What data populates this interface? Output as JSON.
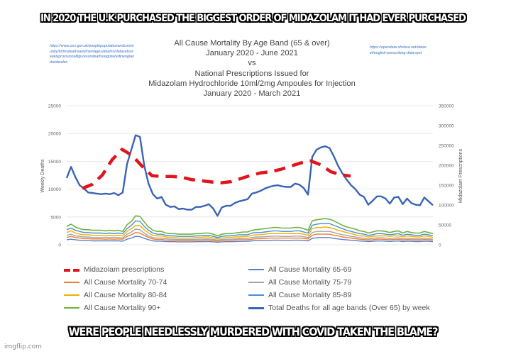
{
  "captions": {
    "top": "IN 2020 THE U.K PURCHASED THE BIGGEST ORDER OF MIDAZOLAM IT HAD EVER PURCHASED",
    "bottom": "WERE PEOPLE NEEDLESSLY MURDERED WITH COVID TAKEN THE BLAME?"
  },
  "watermark": "imgflip.com",
  "sources": {
    "left": "https://www.ons.gov.uk/peoplepopulationandcommunity/birthsdeathsandmarriages/deaths/datasets/weeklyprovisionalfiguresondeathsregisteredinenglandandwales",
    "right": "https://opendata.nhsbsa.net/dataset/english-prescribing-data-epd"
  },
  "chart_data": {
    "type": "line",
    "title": [
      "All Cause Mortality By Age Band (65 & over)",
      "January 2020 - June 2021",
      "vs",
      "National Prescriptions Issued for",
      "Midazolam Hydrochloride 10ml/2mg Ampoules for Injection",
      "January 2020 - March 2021"
    ],
    "ylabel": "Weekly Deaths",
    "y2label": "Midazolam Prescriptions",
    "ylim": [
      0,
      25000
    ],
    "y2lim": [
      0,
      350000
    ],
    "yticks": [
      "25000",
      "20000",
      "15000",
      "10000",
      "5000",
      "0"
    ],
    "y2ticks": [
      "350000",
      "300000",
      "250000",
      "200000",
      "150000",
      "100000",
      "50000",
      "0"
    ],
    "grid": true,
    "legend_position": "bottom",
    "series": [
      {
        "name": "Total Deaths for all age bands (Over 65) by week",
        "axis": "left",
        "color": "#3b63b5",
        "width": 2.4,
        "values": [
          12000,
          14000,
          12200,
          10700,
          10100,
          9400,
          9300,
          9200,
          9100,
          9200,
          9100,
          9300,
          8900,
          9400,
          14500,
          17100,
          19700,
          19400,
          14200,
          11000,
          9100,
          8300,
          8600,
          7200,
          6800,
          6900,
          6400,
          6500,
          6300,
          6300,
          6800,
          6800,
          7000,
          7300,
          6500,
          5200,
          6700,
          7000,
          7000,
          7500,
          7800,
          8000,
          8200,
          9200,
          9400,
          9700,
          10100,
          10400,
          10600,
          10700,
          10500,
          10400,
          10400,
          11000,
          10800,
          10200,
          9000,
          15800,
          17100,
          17500,
          17700,
          17400,
          15900,
          14200,
          12800,
          11700,
          10700,
          10000,
          9000,
          8600,
          7200,
          7900,
          8700,
          8700,
          8300,
          7400,
          8500,
          8600,
          7300,
          8300,
          7500,
          7200,
          7100,
          8500,
          7800,
          7100
        ]
      },
      {
        "name": "Midazolam prescriptions",
        "axis": "right",
        "color": "#e0141c",
        "width": 4.5,
        "dashed": true,
        "values": [
          142000,
          152000,
          175000,
          214000,
          240000,
          225000,
          198000,
          174000,
          172000,
          172000,
          170000,
          164000,
          161000,
          158000,
          156000,
          159000,
          167000,
          175000,
          181000,
          184000,
          190000,
          198000,
          206000,
          211000,
          201000,
          184000,
          176000,
          173000
        ]
      },
      {
        "name": "All Cause Mortality 90+",
        "axis": "left",
        "color": "#6db33f",
        "width": 1.6,
        "values": [
          3300,
          3700,
          3200,
          2900,
          2700,
          2700,
          2600,
          2600,
          2600,
          2500,
          2600,
          2500,
          2600,
          2400,
          3600,
          4200,
          5200,
          5100,
          4100,
          3200,
          2600,
          2400,
          2400,
          2100,
          2000,
          2000,
          1900,
          1900,
          1900,
          1900,
          2000,
          2000,
          2100,
          2100,
          1900,
          1600,
          1900,
          2000,
          2000,
          2100,
          2200,
          2300,
          2300,
          2600,
          2700,
          2800,
          2900,
          3000,
          3100,
          3100,
          3000,
          3000,
          3000,
          3100,
          3100,
          2900,
          2600,
          4300,
          4500,
          4600,
          4700,
          4600,
          4300,
          3900,
          3500,
          3200,
          3000,
          2800,
          2500,
          2400,
          2100,
          2300,
          2500,
          2500,
          2400,
          2200,
          2400,
          2500,
          2100,
          2400,
          2200,
          2100,
          2100,
          2400,
          2200,
          2000
        ]
      },
      {
        "name": "All Cause Mortality 85-89",
        "axis": "left",
        "color": "#4a8ed2",
        "width": 1.4,
        "values": [
          2700,
          3000,
          2600,
          2400,
          2200,
          2200,
          2100,
          2100,
          2100,
          2000,
          2100,
          2000,
          2100,
          2000,
          2900,
          3500,
          4300,
          4200,
          3300,
          2600,
          2100,
          1900,
          1900,
          1700,
          1600,
          1600,
          1500,
          1500,
          1500,
          1500,
          1600,
          1600,
          1700,
          1700,
          1500,
          1300,
          1500,
          1600,
          1600,
          1700,
          1800,
          1800,
          1800,
          2100,
          2200,
          2200,
          2300,
          2400,
          2500,
          2500,
          2400,
          2400,
          2400,
          2500,
          2500,
          2300,
          2100,
          3500,
          3700,
          3800,
          3800,
          3800,
          3500,
          3200,
          2900,
          2600,
          2400,
          2200,
          2000,
          1900,
          1700,
          1800,
          2000,
          2000,
          1900,
          1800,
          1900,
          2000,
          1700,
          1900,
          1800,
          1700,
          1700,
          1900,
          1800,
          1600
        ]
      },
      {
        "name": "All Cause Mortality 80-84",
        "axis": "left",
        "color": "#f2b000",
        "width": 1.4,
        "values": [
          2200,
          2500,
          2100,
          1900,
          1800,
          1800,
          1700,
          1700,
          1700,
          1600,
          1700,
          1600,
          1700,
          1600,
          2400,
          2900,
          3500,
          3400,
          2700,
          2100,
          1700,
          1600,
          1600,
          1400,
          1300,
          1300,
          1200,
          1200,
          1200,
          1200,
          1300,
          1300,
          1400,
          1400,
          1200,
          1100,
          1200,
          1300,
          1300,
          1400,
          1400,
          1500,
          1500,
          1700,
          1800,
          1800,
          1900,
          2000,
          2000,
          2000,
          2000,
          2000,
          2000,
          2000,
          2000,
          1900,
          1700,
          2900,
          3100,
          3100,
          3200,
          3100,
          2900,
          2600,
          2400,
          2200,
          2000,
          1800,
          1600,
          1600,
          1400,
          1500,
          1600,
          1600,
          1600,
          1500,
          1600,
          1600,
          1400,
          1600,
          1500,
          1400,
          1400,
          1600,
          1500,
          1300
        ]
      },
      {
        "name": "All Cause Mortality 75-79",
        "axis": "left",
        "color": "#a5a5a5",
        "width": 1.4,
        "values": [
          1700,
          1900,
          1600,
          1500,
          1400,
          1400,
          1300,
          1300,
          1300,
          1300,
          1300,
          1300,
          1300,
          1200,
          1900,
          2300,
          2800,
          2700,
          2100,
          1600,
          1300,
          1200,
          1200,
          1100,
          1000,
          1000,
          950,
          950,
          950,
          950,
          1000,
          1000,
          1050,
          1050,
          950,
          850,
          950,
          1000,
          1000,
          1050,
          1100,
          1150,
          1150,
          1300,
          1400,
          1400,
          1450,
          1500,
          1550,
          1550,
          1500,
          1500,
          1500,
          1550,
          1550,
          1450,
          1300,
          2200,
          2400,
          2400,
          2400,
          2400,
          2200,
          2000,
          1800,
          1700,
          1500,
          1400,
          1250,
          1200,
          1050,
          1150,
          1250,
          1250,
          1200,
          1100,
          1200,
          1250,
          1050,
          1200,
          1100,
          1050,
          1050,
          1200,
          1100,
          1000
        ]
      },
      {
        "name": "All Cause Mortality 70-74",
        "axis": "left",
        "color": "#ed7d31",
        "width": 1.4,
        "values": [
          1300,
          1500,
          1300,
          1200,
          1100,
          1100,
          1050,
          1050,
          1050,
          1000,
          1050,
          1000,
          1050,
          1000,
          1500,
          1800,
          2200,
          2100,
          1700,
          1300,
          1050,
          950,
          950,
          850,
          800,
          800,
          750,
          750,
          750,
          750,
          800,
          800,
          850,
          850,
          750,
          650,
          750,
          800,
          800,
          850,
          900,
          900,
          900,
          1000,
          1100,
          1100,
          1150,
          1200,
          1200,
          1200,
          1200,
          1200,
          1200,
          1200,
          1200,
          1150,
          1050,
          1700,
          1900,
          1900,
          1900,
          1900,
          1700,
          1600,
          1400,
          1300,
          1200,
          1100,
          1000,
          950,
          850,
          900,
          1000,
          1000,
          950,
          900,
          950,
          1000,
          850,
          950,
          900,
          850,
          850,
          950,
          900,
          800
        ]
      },
      {
        "name": "All Cause Mortality 65-69",
        "axis": "left",
        "color": "#5b7fc4",
        "width": 1.4,
        "values": [
          900,
          1000,
          900,
          800,
          750,
          750,
          700,
          700,
          700,
          700,
          700,
          700,
          700,
          650,
          1000,
          1200,
          1500,
          1450,
          1150,
          900,
          700,
          650,
          650,
          580,
          550,
          550,
          520,
          520,
          520,
          520,
          550,
          550,
          580,
          580,
          520,
          450,
          520,
          550,
          550,
          580,
          600,
          620,
          620,
          700,
          750,
          750,
          780,
          800,
          820,
          820,
          800,
          800,
          800,
          820,
          820,
          780,
          700,
          1150,
          1250,
          1300,
          1300,
          1300,
          1150,
          1050,
          950,
          880,
          800,
          750,
          680,
          650,
          580,
          620,
          680,
          680,
          650,
          600,
          650,
          680,
          580,
          650,
          620,
          580,
          580,
          650,
          620,
          550
        ]
      }
    ]
  },
  "legend": [
    {
      "label": "Midazolam prescriptions",
      "color": "#e0141c",
      "style": "dashed"
    },
    {
      "label": "All Cause Mortality 65-69",
      "color": "#5b7fc4",
      "style": "solid"
    },
    {
      "label": "All Cause Mortality 70-74",
      "color": "#ed7d31",
      "style": "solid"
    },
    {
      "label": "All Cause Mortality 75-79",
      "color": "#a5a5a5",
      "style": "solid"
    },
    {
      "label": "All Cause Mortality 80-84",
      "color": "#f2b000",
      "style": "solid"
    },
    {
      "label": "All Cause Mortality 85-89",
      "color": "#4a8ed2",
      "style": "solid"
    },
    {
      "label": "All Cause Mortality 90+",
      "color": "#6db33f",
      "style": "solid"
    },
    {
      "label": "Total Deaths for all age bands (Over 65) by week",
      "color": "#3b63b5",
      "style": "thick"
    }
  ]
}
